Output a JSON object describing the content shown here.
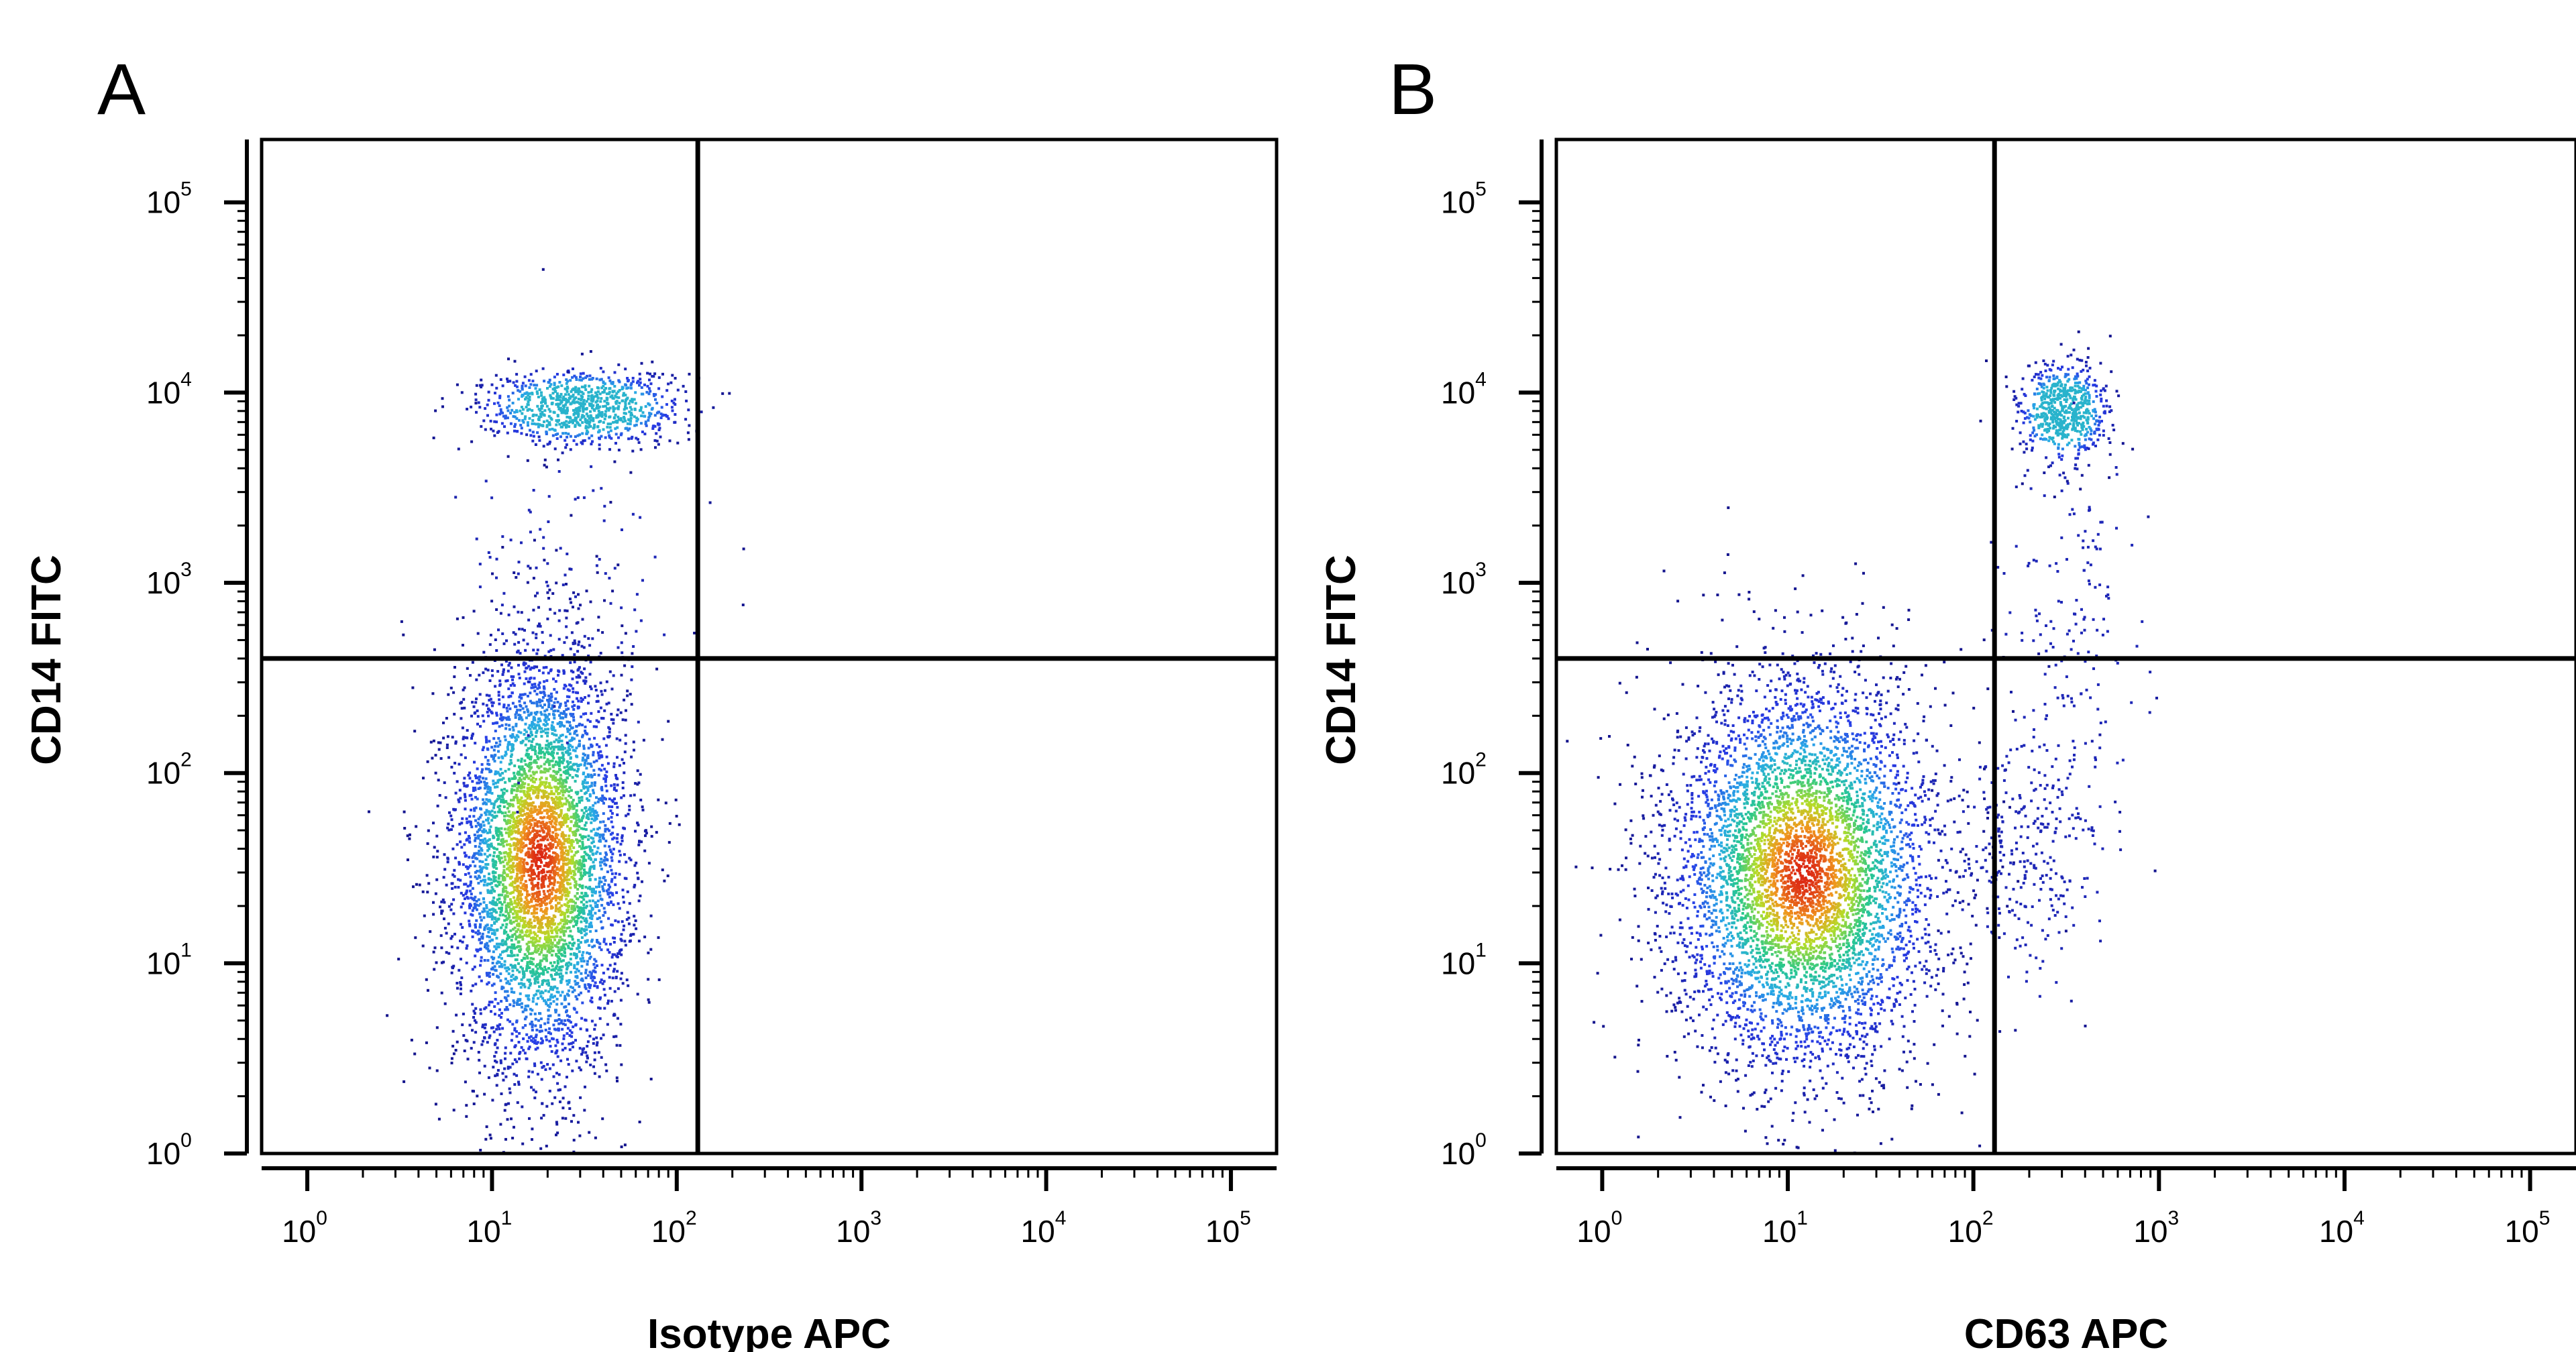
{
  "chart_data": [
    {
      "type": "scatter",
      "panel_label": "A",
      "xlabel": "Isotype APC",
      "ylabel": "CD14 FITC",
      "x_scale": "log",
      "y_scale": "log",
      "xlim": [
        0.5,
        130000
      ],
      "ylim": [
        1,
        200000
      ],
      "x_ticks": [
        1,
        10,
        100,
        1000,
        10000,
        100000
      ],
      "y_ticks": [
        1,
        10,
        100,
        1000,
        10000,
        100000
      ],
      "tick_base": "10",
      "x_tick_exponents": [
        "0",
        "1",
        "2",
        "3",
        "4",
        "5"
      ],
      "y_tick_exponents": [
        "0",
        "1",
        "2",
        "3",
        "4",
        "5"
      ],
      "quadrant_gate": {
        "x": 130,
        "y": 400
      },
      "grid": false,
      "legend": "none",
      "populations": [
        {
          "center": [
            18,
            35
          ],
          "spread": [
            0.23,
            0.55
          ],
          "count": 5200,
          "peak_color": "#e84a1e"
        },
        {
          "center": [
            30,
            8500
          ],
          "spread": [
            0.27,
            0.1
          ],
          "count": 900,
          "peak_color": "#3ab8e0"
        },
        {
          "center": [
            25,
            900
          ],
          "spread": [
            0.3,
            0.45
          ],
          "count": 120,
          "peak_color": "#2a2aa0"
        }
      ]
    },
    {
      "type": "scatter",
      "panel_label": "B",
      "xlabel": "CD63 APC",
      "ylabel": "CD14 FITC",
      "x_scale": "log",
      "y_scale": "log",
      "xlim": [
        0.5,
        130000
      ],
      "ylim": [
        1,
        200000
      ],
      "x_ticks": [
        1,
        10,
        100,
        1000,
        10000,
        100000
      ],
      "y_ticks": [
        1,
        10,
        100,
        1000,
        10000,
        100000
      ],
      "tick_base": "10",
      "x_tick_exponents": [
        "0",
        "1",
        "2",
        "3",
        "4",
        "5"
      ],
      "y_tick_exponents": [
        "0",
        "1",
        "2",
        "3",
        "4",
        "5"
      ],
      "quadrant_gate": {
        "x": 130,
        "y": 400
      },
      "grid": false,
      "legend": "none",
      "populations": [
        {
          "center": [
            12,
            30
          ],
          "spread": [
            0.35,
            0.5
          ],
          "count": 5600,
          "peak_color": "#e84a1e"
        },
        {
          "center": [
            300,
            8000
          ],
          "spread": [
            0.12,
            0.13
          ],
          "count": 650,
          "peak_color": "#3ab8e0"
        },
        {
          "center": [
            350,
            500
          ],
          "spread": [
            0.18,
            0.5
          ],
          "count": 160,
          "peak_color": "#2a2aa0"
        },
        {
          "center": [
            200,
            40
          ],
          "spread": [
            0.2,
            0.35
          ],
          "count": 300,
          "peak_color": "#2a2aa0"
        }
      ]
    }
  ]
}
